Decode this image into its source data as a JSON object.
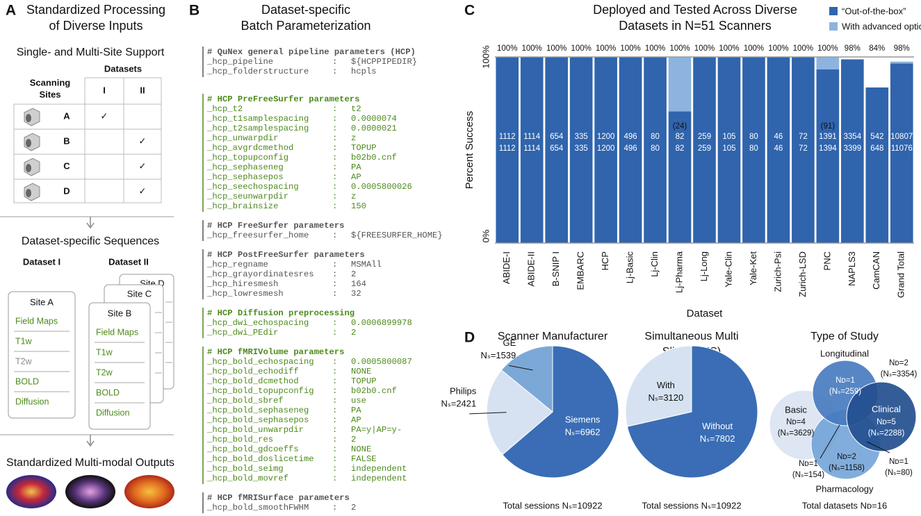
{
  "panel_a": {
    "letter": "A",
    "title": [
      "Standardized Processing",
      "of Diverse Inputs"
    ],
    "table_title": "Single- and Multi-Site Support",
    "datasets_header": "Datasets",
    "sites_header": [
      "Scanning",
      "Sites"
    ],
    "columns": [
      "I",
      "II"
    ],
    "rows": [
      {
        "site": "A",
        "I": "✓"
      },
      {
        "site": "B",
        "II": "✓"
      },
      {
        "site": "C",
        "II": "✓"
      },
      {
        "site": "D",
        "II": "✓"
      }
    ],
    "sequences_title": "Dataset-specific Sequences",
    "dataset_i": {
      "label": "Dataset I",
      "site": "Site A",
      "sequences": [
        "Field Maps",
        "T1w",
        "T2w",
        "BOLD",
        "Diffusion"
      ],
      "colors": [
        "#4d8a1c",
        "#4d8a1c",
        "#8a8a8a",
        "#4d8a1c",
        "#4d8a1c"
      ]
    },
    "dataset_ii": {
      "label": "Dataset II",
      "sites": [
        "Site B",
        "Site C",
        "Site D"
      ],
      "sequences": [
        "Field Maps",
        "T1w",
        "T2w",
        "BOLD",
        "Diffusion"
      ]
    },
    "outputs_title": "Standardized Multi-modal Outputs"
  },
  "panel_b": {
    "letter": "B",
    "title": [
      "Dataset-specific",
      "Batch Parameterization"
    ],
    "separator": ":",
    "sections": [
      {
        "color": "#555555",
        "header": "# QuNex general pipeline parameters (HCP)",
        "lines": [
          [
            "_hcp_pipeline",
            "${HCPPIPEDIR}"
          ],
          [
            "_hcp_folderstructure",
            "hcpls"
          ]
        ]
      },
      {
        "color": "#4d8a1c",
        "header": "# HCP PreFreeSurfer parameters",
        "lines": [
          [
            "_hcp_t2",
            "t2"
          ],
          [
            "_hcp_t1samplespacing",
            "0.0000074"
          ],
          [
            "_hcp_t2samplespacing",
            "0.0000021"
          ],
          [
            "_hcp_unwarpdir",
            "z"
          ],
          [
            "_hcp_avgrdcmethod",
            "TOPUP"
          ],
          [
            "_hcp_topupconfig",
            "b02b0.cnf"
          ],
          [
            "_hcp_sephaseneg",
            "PA"
          ],
          [
            "_hcp_sephasepos",
            "AP"
          ],
          [
            "_hcp_seechospacing",
            "0.0005800026"
          ],
          [
            "_hcp_seunwarpdir",
            "z"
          ],
          [
            "_hcp_brainsize",
            "150"
          ]
        ]
      },
      {
        "color": "#555555",
        "header": "# HCP FreeSurfer parameters",
        "lines": [
          [
            "_hcp_freesurfer_home",
            "${FREESURFER_HOME}"
          ]
        ]
      },
      {
        "color": "#555555",
        "header": "# HCP PostFreeSurfer parameters",
        "lines": [
          [
            "_hcp_regname",
            "MSMAll"
          ],
          [
            "_hcp_grayordinatesres",
            "2"
          ],
          [
            "_hcp_hiresmesh",
            "164"
          ],
          [
            "_hcp_lowresmesh",
            "32"
          ]
        ]
      },
      {
        "color": "#4d8a1c",
        "header": "# HCP Diffusion preprocessing",
        "lines": [
          [
            "_hcp_dwi_echospacing",
            "0.0006899978"
          ],
          [
            "_hcp_dwi_PEdir",
            "2"
          ]
        ]
      },
      {
        "color": "#4d8a1c",
        "header": "# HCP fMRIVolume parameters",
        "lines": [
          [
            "_hcp_bold_echospacing",
            "0.0005800087"
          ],
          [
            "_hcp_bold_echodiff",
            "NONE"
          ],
          [
            "_hcp_bold_dcmethod",
            "TOPUP"
          ],
          [
            "_hcp_bold_topupconfig",
            "b02b0.cnf"
          ],
          [
            "_hcp_bold_sbref",
            "use"
          ],
          [
            "_hcp_bold_sephaseneg",
            "PA"
          ],
          [
            "_hcp_bold_sephasepos",
            "AP"
          ],
          [
            "_hcp_bold_unwarpdir",
            "PA=y|AP=y-"
          ],
          [
            "_hcp_bold_res",
            "2"
          ],
          [
            "_hcp_bold_gdcoeffs",
            "NONE"
          ],
          [
            "_hcp_bold_doslicetime",
            "FALSE"
          ],
          [
            "_hcp_bold_seimg",
            "independent"
          ],
          [
            "_hcp_bold_movref",
            "independent"
          ]
        ]
      },
      {
        "color": "#555555",
        "header": "# HCP fMRISurface parameters",
        "lines": [
          [
            "_hcp_bold_smoothFWHM",
            "2"
          ]
        ]
      }
    ]
  },
  "chart_data": [
    {
      "type": "bar",
      "letter": "C",
      "title": [
        "Deployed and Tested Across Diverse",
        "Datasets in N=51 Scanners"
      ],
      "xlabel": "Dataset",
      "ylabel": "Percent Success",
      "categories": [
        "ABIDE-I",
        "ABIDE-II",
        "B-SNIP I",
        "EMBARC",
        "HCP",
        "Lj-Basic",
        "Lj-Clin",
        "Lj-Pharma",
        "Lj-Long",
        "Yale-Clin",
        "Yale-Ket",
        "Zurich-Psi",
        "Zurich-LSD",
        "PNC",
        "NAPLS3",
        "CamCAN",
        "Grand Total"
      ],
      "series": [
        {
          "name": "“Out-of-the-box”",
          "color": "#3064ad",
          "values": [
            100,
            100,
            100,
            100,
            100,
            100,
            100,
            70.7,
            100,
            100,
            100,
            100,
            100,
            93.3,
            98.7,
            83.6,
            96.5
          ]
        },
        {
          "name": "With advanced options",
          "color": "#8db4df",
          "values": [
            0,
            0,
            0,
            0,
            0,
            0,
            0,
            29.3,
            0,
            0,
            0,
            0,
            0,
            6.5,
            0,
            0,
            1.0
          ]
        }
      ],
      "total_labels": [
        "100%",
        "100%",
        "100%",
        "100%",
        "100%",
        "100%",
        "100%",
        "100%",
        "100%",
        "100%",
        "100%",
        "100%",
        "100%",
        "100%",
        "98%",
        "84%",
        "98%"
      ],
      "successes": [
        1112,
        1114,
        654,
        335,
        1200,
        496,
        80,
        82,
        259,
        105,
        80,
        46,
        72,
        1391,
        3354,
        542,
        10807
      ],
      "sessions": [
        1112,
        1114,
        654,
        335,
        1200,
        496,
        80,
        82,
        259,
        105,
        80,
        46,
        72,
        1394,
        3399,
        648,
        11076
      ],
      "advanced_labels": [
        null,
        null,
        null,
        null,
        null,
        null,
        null,
        "(24)",
        null,
        null,
        null,
        null,
        null,
        "(91)",
        null,
        null,
        null
      ],
      "ylim": [
        0,
        100
      ],
      "yticks": [
        {
          "value": 0,
          "label": "0%"
        },
        {
          "value": 100,
          "label": "100%"
        }
      ],
      "grid": true
    },
    {
      "type": "pie",
      "title": [
        "Scanner Manufacturer"
      ],
      "categories": [
        "Siemens",
        "Philips",
        "GE"
      ],
      "values": [
        6962,
        2421,
        1539
      ],
      "value_labels": [
        "Nₛ=6962",
        "Nₛ=2421",
        "Nₛ=1539"
      ],
      "colors": [
        "#3a6db5",
        "#d6e2f1",
        "#7ca8d7"
      ],
      "total_label": "Total sessions Nₛ=10922"
    },
    {
      "type": "pie",
      "title": [
        "Simultaneous Multi",
        "Slice (SMS)"
      ],
      "categories": [
        "Without",
        "With"
      ],
      "values": [
        7802,
        3120
      ],
      "value_labels": [
        "Nₛ=7802",
        "Nₛ=3120"
      ],
      "colors": [
        "#3a6db5",
        "#d6e2f1"
      ],
      "total_label": "Total sessions Nₛ=10922"
    }
  ],
  "panel_d": {
    "letter": "D",
    "venn": {
      "title": "Type of Study",
      "sets": [
        "Longitudinal",
        "Clinical",
        "Basic",
        "Pharmacology"
      ],
      "regions": [
        [
          "Nᴅ=1",
          "(Nₛ=259)"
        ],
        [
          "Nᴅ=2",
          "(Nₛ=3354)"
        ],
        [
          "Nᴅ=5",
          "(Nₛ=2288)"
        ],
        [
          "Nᴅ=4",
          "(Nₛ=3629)"
        ],
        [
          "Nᴅ=2",
          "(Nₛ=1158)"
        ],
        [
          "Nᴅ=1",
          "(Nₛ=154)"
        ],
        [
          "Nᴅ=1",
          "(Nₛ=80)"
        ]
      ],
      "total": "Total datasets Nᴅ=16"
    }
  }
}
